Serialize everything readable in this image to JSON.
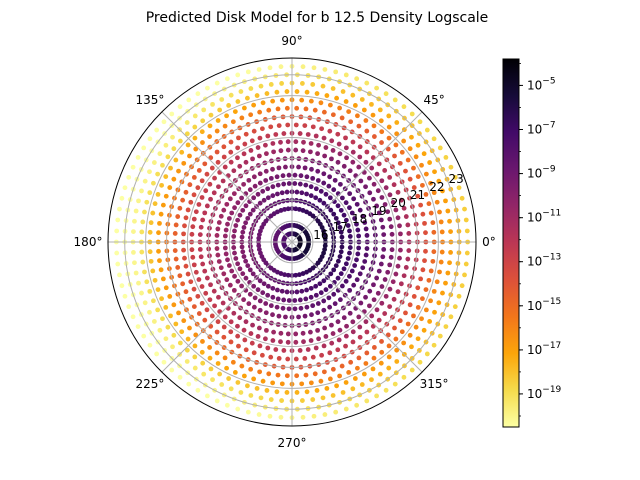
{
  "chart_data": {
    "type": "scatter",
    "projection": "polar",
    "title": "Predicted Disk Model for b 12.5 Density  Logscale",
    "grid": true,
    "angle_tick_labels": [
      "0°",
      "45°",
      "90°",
      "135°",
      "180°",
      "225°",
      "270°",
      "315°"
    ],
    "angle_tick_values_deg": [
      0,
      45,
      90,
      135,
      180,
      225,
      270,
      315
    ],
    "radial_tick_labels": [
      "16",
      "17",
      "18",
      "19",
      "20",
      "21",
      "22",
      "23"
    ],
    "radial_tick_values": [
      16,
      17,
      18,
      19,
      20,
      21,
      22,
      23
    ],
    "radial_range": [
      15,
      23.8
    ],
    "rings": [
      {
        "r": 15.4,
        "n": 40,
        "density_log10": -6.2
      },
      {
        "r": 15.8,
        "n": 44,
        "density_log10": -6.8
      },
      {
        "r": 16.6,
        "n": 56,
        "density_log10": -7.3
      },
      {
        "r": 17.0,
        "n": 60,
        "density_log10": -7.8
      },
      {
        "r": 17.4,
        "n": 64,
        "density_log10": -8.1
      },
      {
        "r": 17.8,
        "n": 66,
        "density_log10": -8.5
      },
      {
        "r": 18.2,
        "n": 70,
        "density_log10": -8.9
      },
      {
        "r": 18.6,
        "n": 72,
        "density_log10": -9.4
      },
      {
        "r": 19.0,
        "n": 76,
        "density_log10": -9.9
      },
      {
        "r": 19.4,
        "n": 78,
        "density_log10": -10.5
      },
      {
        "r": 19.8,
        "n": 82,
        "density_log10": -11.2
      },
      {
        "r": 20.2,
        "n": 84,
        "density_log10": -12.0
      },
      {
        "r": 20.6,
        "n": 86,
        "density_log10": -13.0
      },
      {
        "r": 21.0,
        "n": 88,
        "density_log10": -14.0
      },
      {
        "r": 21.4,
        "n": 90,
        "density_log10": -15.3
      },
      {
        "r": 21.8,
        "n": 92,
        "density_log10": -16.5
      },
      {
        "r": 22.2,
        "n": 94,
        "density_log10": -17.6
      },
      {
        "r": 22.6,
        "n": 96,
        "density_log10": -18.5
      },
      {
        "r": 23.0,
        "n": 98,
        "density_log10": -19.3
      },
      {
        "r": 23.4,
        "n": 100,
        "density_log10": -20.0
      }
    ],
    "azimuth_effect": {
      "phase_deg": 0,
      "amplitude_log10": 1.6
    },
    "colorbar": {
      "colormap": "inferno_r",
      "scale": "log",
      "range_log10": [
        -20.5,
        -3.8
      ],
      "tick_values_log10": [
        -5,
        -7,
        -9,
        -11,
        -13,
        -15,
        -17,
        -19
      ],
      "tick_base": "10",
      "tick_exponents": [
        "−5",
        "−7",
        "−9",
        "−11",
        "−13",
        "−15",
        "−17",
        "−19"
      ]
    }
  }
}
